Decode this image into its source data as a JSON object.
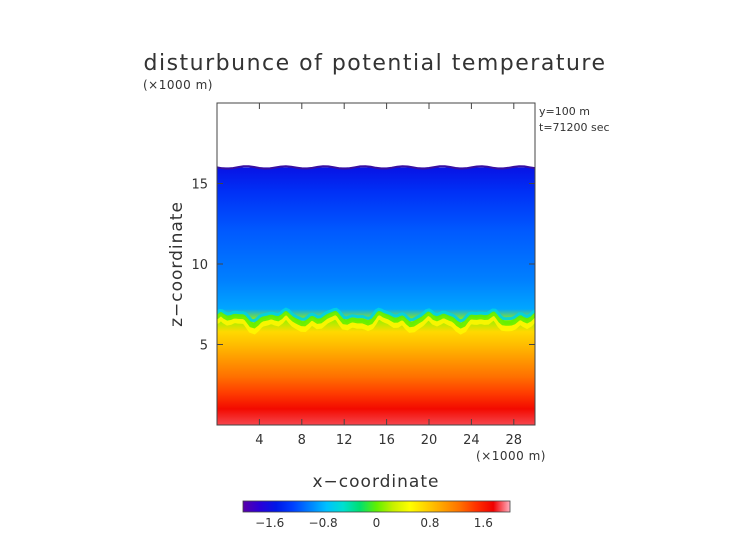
{
  "chart_data": {
    "type": "heatmap",
    "title": "disturbunce of potential temperature",
    "axis_unit_label": "(×1000 m)",
    "info": [
      "y=100 m",
      "t=71200 sec"
    ],
    "xlabel": "x−coordinate",
    "ylabel": "z−coordinate",
    "xlim": [
      0,
      30
    ],
    "ylim": [
      0,
      20
    ],
    "x_ticks": [
      4,
      8,
      12,
      16,
      20,
      24,
      28
    ],
    "y_ticks": [
      5,
      10,
      15
    ],
    "data_top_z": 16.0,
    "inversion_z": 6.5,
    "colorbar": {
      "range": [
        -2.0,
        2.0
      ],
      "ticks": [
        -1.6,
        -0.8,
        0,
        0.8,
        1.6
      ],
      "tick_labels": [
        "−1.6",
        "−0.8",
        "0",
        "0.8",
        "1.6"
      ],
      "colors": [
        "#5a00a8",
        "#2a00d8",
        "#0018e8",
        "#0040ff",
        "#0080ff",
        "#00c0ff",
        "#00e0d0",
        "#00e070",
        "#60f000",
        "#c8f000",
        "#ffff00",
        "#ffd000",
        "#ffa000",
        "#ff7000",
        "#ff3000",
        "#f00000",
        "#ffb0c0"
      ]
    },
    "profile": [
      {
        "z": 0.0,
        "value": 1.85
      },
      {
        "z": 1.0,
        "value": 1.7
      },
      {
        "z": 2.0,
        "value": 1.45
      },
      {
        "z": 3.0,
        "value": 1.25
      },
      {
        "z": 4.0,
        "value": 1.05
      },
      {
        "z": 5.0,
        "value": 0.85
      },
      {
        "z": 5.8,
        "value": 0.7
      },
      {
        "z": 6.5,
        "value": 0.15
      },
      {
        "z": 7.2,
        "value": -0.85
      },
      {
        "z": 9.0,
        "value": -1.0
      },
      {
        "z": 12.0,
        "value": -1.15
      },
      {
        "z": 14.5,
        "value": -1.35
      },
      {
        "z": 16.0,
        "value": -1.55
      }
    ]
  }
}
